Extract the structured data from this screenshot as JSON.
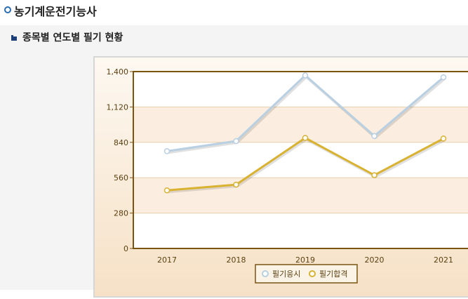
{
  "page": {
    "title": "농기계운전기능사",
    "subtitle": "종목별 연도별 필기 현황"
  },
  "colors": {
    "series1": "#b9cfe2",
    "series2": "#d9b232",
    "axis": "#7a5512"
  },
  "chart_data": {
    "type": "line",
    "categories": [
      "2017",
      "2018",
      "2019",
      "2020",
      "2021"
    ],
    "series": [
      {
        "name": "필기응시",
        "values": [
          770,
          850,
          1370,
          890,
          1355
        ]
      },
      {
        "name": "필기합격",
        "values": [
          460,
          505,
          875,
          580,
          870
        ]
      }
    ],
    "yticks": [
      "0",
      "280",
      "560",
      "840",
      "1,120",
      "1,400"
    ],
    "ylim": [
      0,
      1400
    ],
    "grid": true,
    "legend": "bottom"
  }
}
